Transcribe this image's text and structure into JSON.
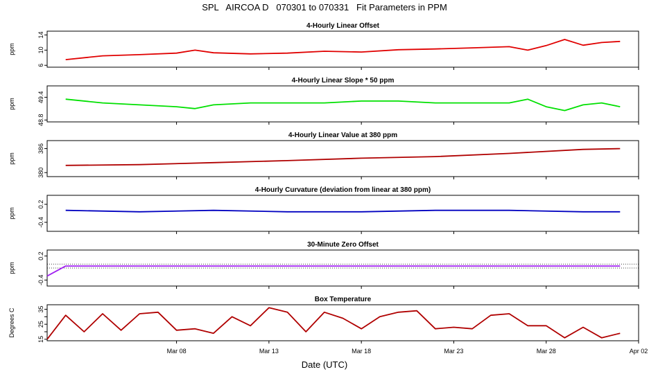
{
  "title": "SPL   AIRCOA D   070301 to 070331   Fit Parameters in PPM",
  "x_axis": {
    "label": "Date (UTC)",
    "range": [
      "2007-03-01",
      "2007-04-02"
    ],
    "ticks": [
      {
        "date": "2007-03-08",
        "label": "Mar 08"
      },
      {
        "date": "2007-03-13",
        "label": "Mar 13"
      },
      {
        "date": "2007-03-18",
        "label": "Mar 18"
      },
      {
        "date": "2007-03-23",
        "label": "Mar 23"
      },
      {
        "date": "2007-03-28",
        "label": "Mar 28"
      },
      {
        "date": "2007-04-02",
        "label": "Apr 02"
      }
    ]
  },
  "chart_data": [
    {
      "type": "line",
      "title": "4-Hourly Linear Offset",
      "ylabel": "ppm",
      "ylim": [
        5.5,
        15
      ],
      "yticks": [
        6,
        10,
        14
      ],
      "ytick_labels": [
        "6",
        "10",
        "14"
      ],
      "color": "#e00000",
      "x": [
        "2007-03-02",
        "2007-03-04",
        "2007-03-06",
        "2007-03-08",
        "2007-03-09",
        "2007-03-10",
        "2007-03-12",
        "2007-03-14",
        "2007-03-16",
        "2007-03-18",
        "2007-03-20",
        "2007-03-22",
        "2007-03-24",
        "2007-03-26",
        "2007-03-27",
        "2007-03-28",
        "2007-03-29",
        "2007-03-30",
        "2007-03-31",
        "2007-04-01"
      ],
      "y": [
        7.5,
        8.5,
        8.8,
        9.2,
        10.0,
        9.3,
        9.0,
        9.2,
        9.7,
        9.5,
        10.1,
        10.3,
        10.6,
        10.9,
        10.0,
        11.2,
        12.8,
        11.3,
        12.0,
        12.3
      ]
    },
    {
      "type": "line",
      "title": "4-Hourly Linear Slope * 50 ppm",
      "ylabel": "ppm",
      "ylim": [
        48.75,
        49.7
      ],
      "yticks": [
        48.8,
        49.4
      ],
      "ytick_labels": [
        "48.8",
        "49.4"
      ],
      "color": "#00e000",
      "x": [
        "2007-03-02",
        "2007-03-04",
        "2007-03-06",
        "2007-03-08",
        "2007-03-09",
        "2007-03-10",
        "2007-03-12",
        "2007-03-14",
        "2007-03-16",
        "2007-03-18",
        "2007-03-20",
        "2007-03-22",
        "2007-03-24",
        "2007-03-26",
        "2007-03-27",
        "2007-03-28",
        "2007-03-29",
        "2007-03-30",
        "2007-03-31",
        "2007-04-01"
      ],
      "y": [
        49.35,
        49.25,
        49.2,
        49.15,
        49.1,
        49.2,
        49.25,
        49.25,
        49.25,
        49.3,
        49.3,
        49.25,
        49.25,
        49.25,
        49.35,
        49.15,
        49.05,
        49.2,
        49.25,
        49.15
      ]
    },
    {
      "type": "line",
      "title": "4-Hourly Linear Value at 380 ppm",
      "ylabel": "ppm",
      "ylim": [
        379,
        388
      ],
      "yticks": [
        380,
        386
      ],
      "ytick_labels": [
        "380",
        "386"
      ],
      "color": "#b00000",
      "x": [
        "2007-03-02",
        "2007-03-06",
        "2007-03-10",
        "2007-03-14",
        "2007-03-18",
        "2007-03-22",
        "2007-03-26",
        "2007-03-30",
        "2007-04-01"
      ],
      "y": [
        381.8,
        382.0,
        382.5,
        383.0,
        383.6,
        384.0,
        384.8,
        385.8,
        386.0
      ]
    },
    {
      "type": "line",
      "title": "4-Hourly Curvature (deviation from linear at 380 ppm)",
      "ylabel": "ppm",
      "ylim": [
        -0.7,
        0.5
      ],
      "yticks": [
        -0.4,
        0.2
      ],
      "ytick_labels": [
        "-0.4",
        "0.2"
      ],
      "color": "#0000c0",
      "x": [
        "2007-03-02",
        "2007-03-06",
        "2007-03-10",
        "2007-03-14",
        "2007-03-18",
        "2007-03-22",
        "2007-03-26",
        "2007-03-30",
        "2007-04-01"
      ],
      "y": [
        0.0,
        -0.05,
        0.0,
        -0.05,
        -0.05,
        0.0,
        0.0,
        -0.05,
        -0.05
      ]
    },
    {
      "type": "line",
      "title": "30-Minute Zero Offset",
      "ylabel": "ppm",
      "ylim": [
        -0.55,
        0.35
      ],
      "yticks": [
        -0.4,
        0.2
      ],
      "ytick_labels": [
        "-0.4",
        "0.2"
      ],
      "color": "#a020f0",
      "reference_lines": [
        0.0,
        -0.1
      ],
      "x": [
        "2007-03-01",
        "2007-03-02",
        "2007-03-06",
        "2007-03-10",
        "2007-03-14",
        "2007-03-18",
        "2007-03-22",
        "2007-03-26",
        "2007-03-30",
        "2007-04-01"
      ],
      "y": [
        -0.3,
        -0.05,
        -0.05,
        -0.05,
        -0.05,
        -0.05,
        -0.05,
        -0.05,
        -0.05,
        -0.05
      ]
    },
    {
      "type": "line",
      "title": "Box Temperature",
      "ylabel": "Degrees C",
      "ylim": [
        14,
        38
      ],
      "yticks": [
        15,
        20,
        25,
        30,
        35
      ],
      "ytick_labels": [
        "15",
        "",
        "25",
        "",
        "35"
      ],
      "color": "#b00000",
      "x": [
        "2007-03-01",
        "2007-03-02",
        "2007-03-03",
        "2007-03-04",
        "2007-03-05",
        "2007-03-06",
        "2007-03-07",
        "2007-03-08",
        "2007-03-09",
        "2007-03-10",
        "2007-03-11",
        "2007-03-12",
        "2007-03-13",
        "2007-03-14",
        "2007-03-15",
        "2007-03-16",
        "2007-03-17",
        "2007-03-18",
        "2007-03-19",
        "2007-03-20",
        "2007-03-21",
        "2007-03-22",
        "2007-03-23",
        "2007-03-24",
        "2007-03-25",
        "2007-03-26",
        "2007-03-27",
        "2007-03-28",
        "2007-03-29",
        "2007-03-30",
        "2007-03-31",
        "2007-04-01"
      ],
      "y": [
        15,
        31,
        20,
        32,
        21,
        32,
        33,
        21,
        22,
        19,
        30,
        24,
        36,
        33,
        20,
        33,
        29,
        22,
        30,
        33,
        34,
        22,
        23,
        22,
        31,
        32,
        24,
        24,
        16,
        23,
        16,
        19
      ]
    }
  ]
}
